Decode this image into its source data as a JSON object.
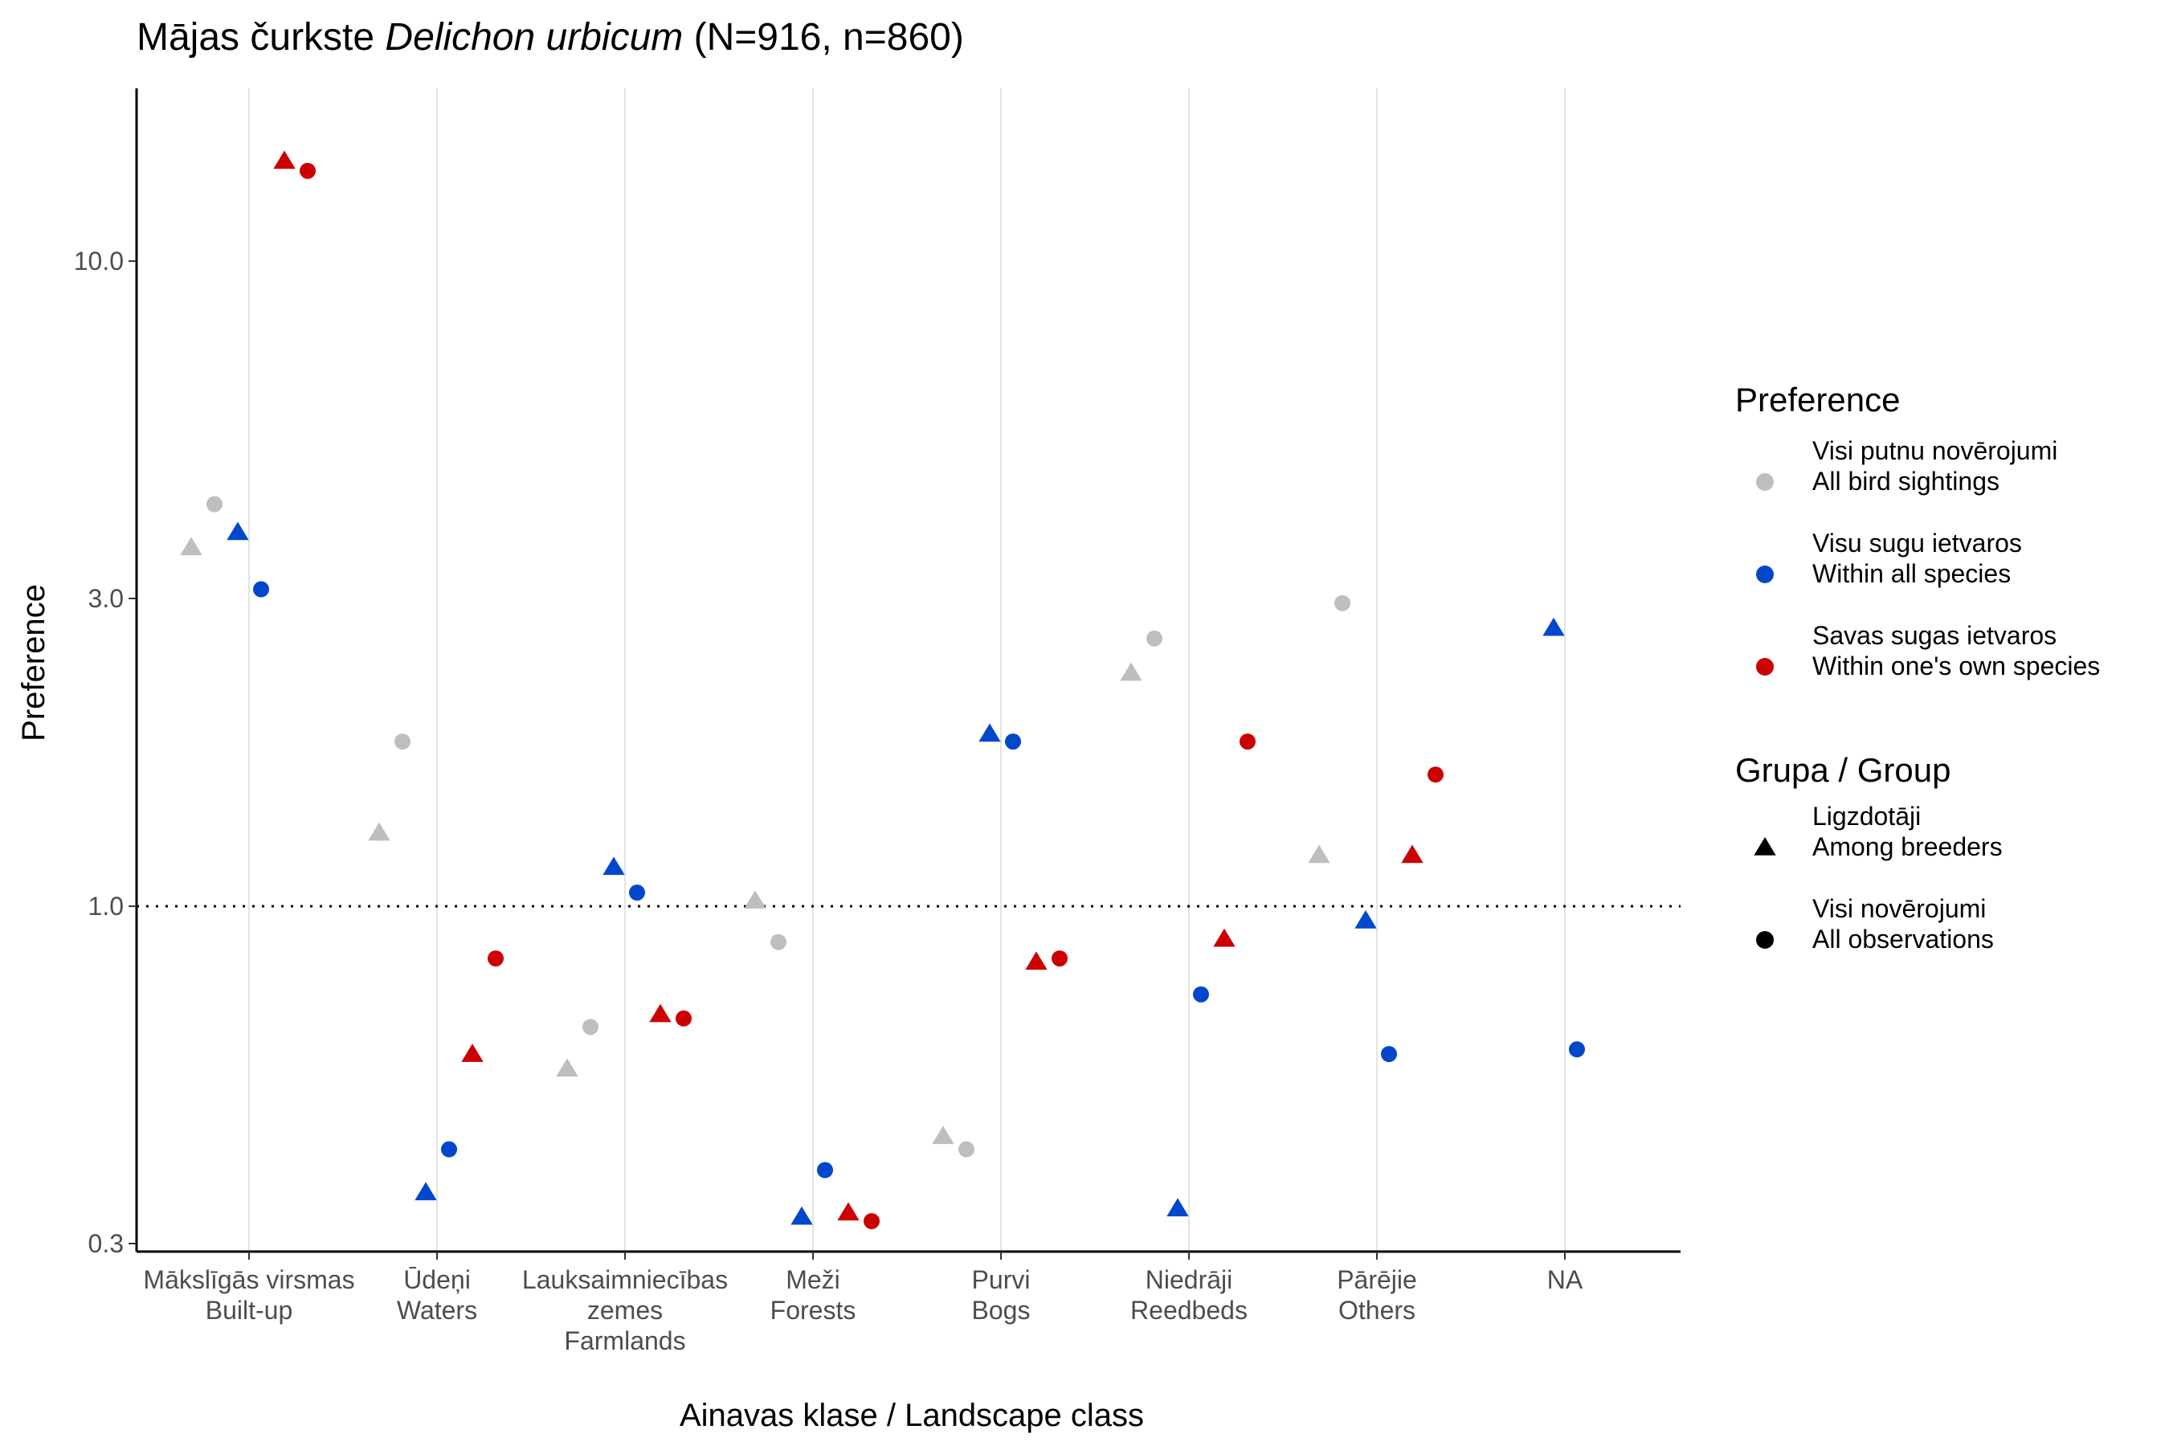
{
  "chart_data": {
    "type": "scatter",
    "title": {
      "prefix": "Mājas čurkste ",
      "species": "Delichon urbicum",
      "suffix": " (N=916, n=860)"
    },
    "xlabel": "Ainavas klase / Landscape class",
    "ylabel": "Preference",
    "y_scale": "log",
    "ylim": [
      0.3,
      17.0
    ],
    "y_ticks": [
      {
        "value": 0.3,
        "label": "0.3"
      },
      {
        "value": 1.0,
        "label": "1.0"
      },
      {
        "value": 3.0,
        "label": "3.0"
      },
      {
        "value": 10.0,
        "label": "10.0"
      }
    ],
    "reference_line": {
      "y": 1.0,
      "style": "dotted"
    },
    "grid": {
      "vertical_major": true,
      "horizontal": false
    },
    "legend_position": "right",
    "categories": [
      {
        "lines": [
          "Mākslīgās virsmas",
          "Built-up"
        ]
      },
      {
        "lines": [
          "Ūdeņi",
          "Waters"
        ]
      },
      {
        "lines": [
          "Lauksaimniecības",
          "zemes",
          "Farmlands"
        ]
      },
      {
        "lines": [
          "Meži",
          "Forests"
        ]
      },
      {
        "lines": [
          "Purvi",
          "Bogs"
        ]
      },
      {
        "lines": [
          "Niedrāji",
          "Reedbeds"
        ]
      },
      {
        "lines": [
          "Pārējie",
          "Others"
        ]
      },
      {
        "lines": [
          "NA"
        ]
      }
    ],
    "preference_legend": {
      "title": "Preference",
      "items": [
        {
          "key": "all_sightings",
          "color": "#BEBEBE",
          "lines": [
            "Visi putnu novērojumi",
            "All bird sightings"
          ]
        },
        {
          "key": "within_all",
          "color": "#0047CC",
          "lines": [
            "Visu sugu ietvaros",
            "Within all species"
          ]
        },
        {
          "key": "within_own",
          "color": "#CC0000",
          "lines": [
            "Savas sugas ietvaros",
            "Within one's own species"
          ]
        }
      ]
    },
    "group_legend": {
      "title": "Grupa / Group",
      "items": [
        {
          "key": "breeders",
          "shape": "triangle",
          "lines": [
            "Ligzdotāji",
            "Among breeders"
          ]
        },
        {
          "key": "all_obs",
          "shape": "circle",
          "lines": [
            "Visi novērojumi",
            "All observations"
          ]
        }
      ]
    },
    "series": [
      {
        "preference": "all_sightings",
        "group": "breeders",
        "values": [
          3.6,
          1.3,
          0.56,
          1.02,
          0.44,
          2.3,
          1.2,
          null
        ]
      },
      {
        "preference": "all_sightings",
        "group": "all_obs",
        "values": [
          4.2,
          1.8,
          0.65,
          0.88,
          0.42,
          2.6,
          2.95,
          null
        ]
      },
      {
        "preference": "within_all",
        "group": "breeders",
        "values": [
          3.8,
          0.36,
          1.15,
          0.33,
          1.85,
          0.34,
          0.95,
          2.7
        ]
      },
      {
        "preference": "within_all",
        "group": "all_obs",
        "values": [
          3.1,
          0.42,
          1.05,
          0.39,
          1.8,
          0.73,
          0.59,
          0.6
        ]
      },
      {
        "preference": "within_own",
        "group": "breeders",
        "values": [
          14.3,
          0.59,
          0.68,
          0.335,
          0.82,
          0.89,
          1.2,
          null
        ]
      },
      {
        "preference": "within_own",
        "group": "all_obs",
        "values": [
          13.8,
          0.83,
          0.67,
          0.325,
          0.83,
          1.8,
          1.6,
          null
        ]
      }
    ]
  }
}
